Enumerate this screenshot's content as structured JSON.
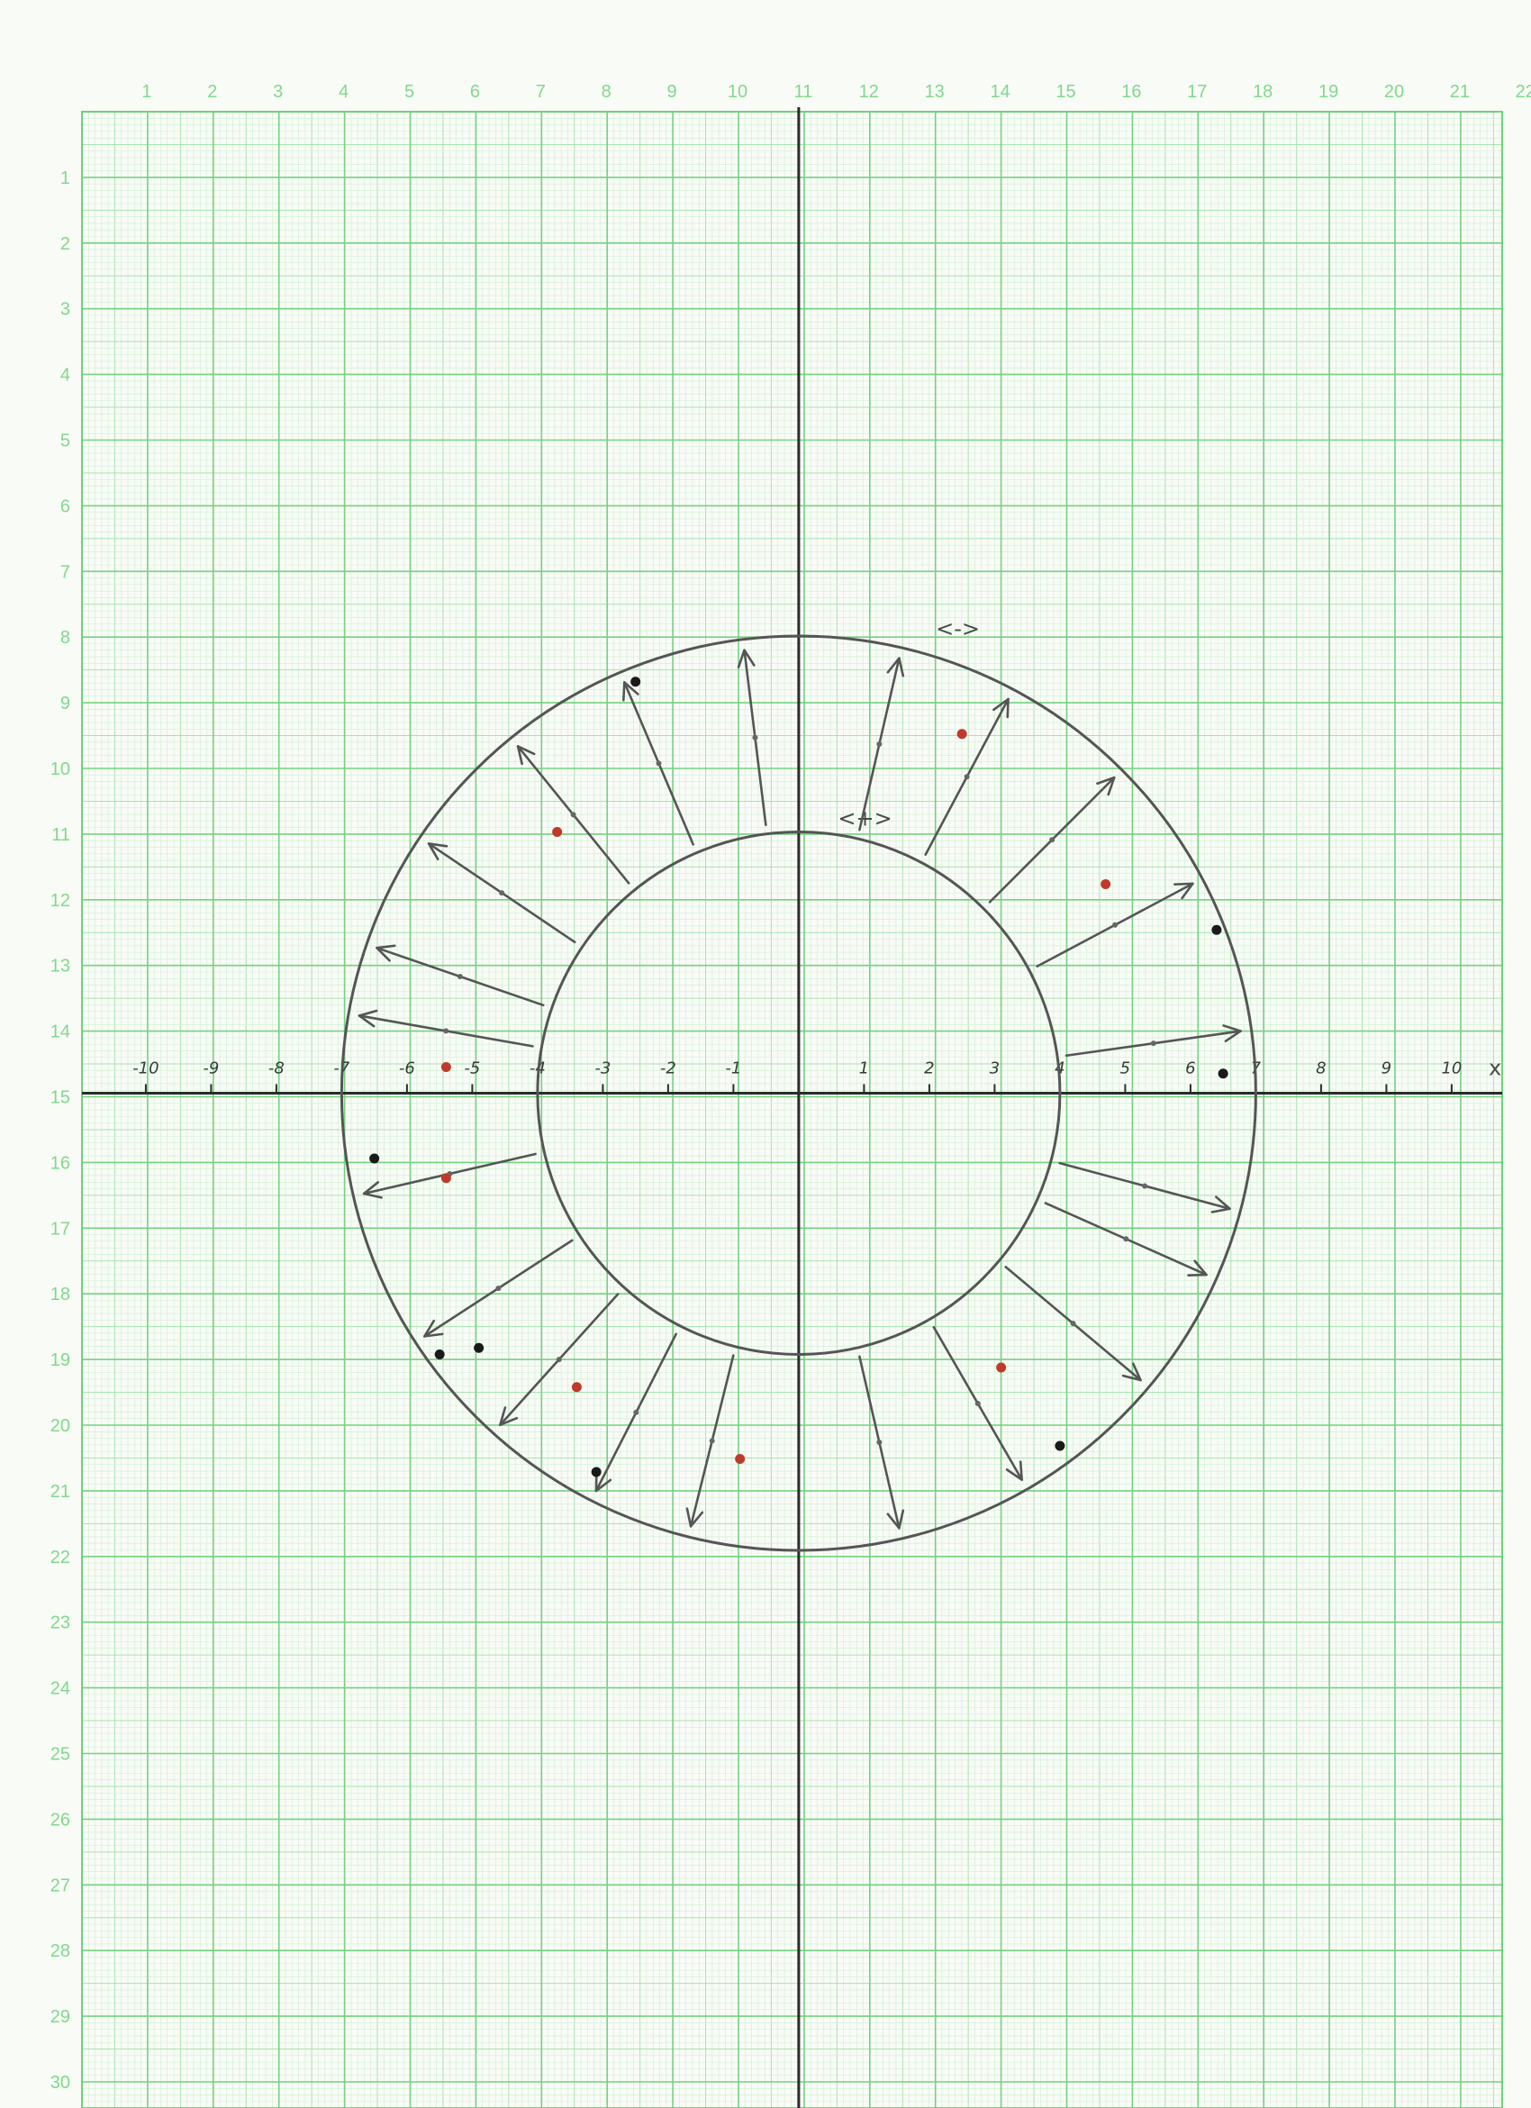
{
  "grid_columns": [
    "1",
    "2",
    "3",
    "4",
    "5",
    "6",
    "7",
    "8",
    "9",
    "10",
    "11",
    "12",
    "13",
    "14",
    "15",
    "16",
    "17",
    "18",
    "19",
    "20",
    "21",
    "22"
  ],
  "grid_rows": [
    "1",
    "2",
    "3",
    "4",
    "5",
    "6",
    "7",
    "8",
    "9",
    "10",
    "11",
    "12",
    "13",
    "14",
    "15",
    "16",
    "17",
    "18",
    "19",
    "20",
    "21",
    "22",
    "23",
    "24",
    "25",
    "26",
    "27",
    "28",
    "29",
    "30"
  ],
  "x_axis": {
    "name": "x",
    "ticks": [
      {
        "v": -10,
        "label": "-10"
      },
      {
        "v": -9,
        "label": "-9"
      },
      {
        "v": -8,
        "label": "-8"
      },
      {
        "v": -7,
        "label": "-7"
      },
      {
        "v": -6,
        "label": "-6"
      },
      {
        "v": -5,
        "label": "-5"
      },
      {
        "v": -4,
        "label": "-4"
      },
      {
        "v": -3,
        "label": "-3"
      },
      {
        "v": -2,
        "label": "-2"
      },
      {
        "v": -1,
        "label": "-1"
      },
      {
        "v": 1,
        "label": "1"
      },
      {
        "v": 2,
        "label": "2"
      },
      {
        "v": 3,
        "label": "3"
      },
      {
        "v": 4,
        "label": "4"
      },
      {
        "v": 5,
        "label": "5"
      },
      {
        "v": 6,
        "label": "6"
      },
      {
        "v": 7,
        "label": "7"
      },
      {
        "v": 8,
        "label": "8"
      },
      {
        "v": 9,
        "label": "9"
      },
      {
        "v": 10,
        "label": "10"
      }
    ]
  },
  "circles": {
    "inner": {
      "radius": 4,
      "label": "<+>"
    },
    "outer": {
      "radius": 7,
      "label": "<->"
    }
  },
  "field_arrows": {
    "angles_deg": [
      8,
      28,
      45,
      62,
      77,
      97,
      113,
      129,
      146,
      161,
      170,
      193,
      213,
      228,
      243,
      256,
      283,
      300,
      320,
      336,
      345
    ]
  },
  "dots": [
    {
      "x": -5.4,
      "y": 0.4,
      "color": "#c0392b"
    },
    {
      "x": 2.5,
      "y": 5.5,
      "color": "#c0392b"
    },
    {
      "x": -3.7,
      "y": 4.0,
      "color": "#c0392b"
    },
    {
      "x": 4.7,
      "y": 3.2,
      "color": "#c0392b"
    },
    {
      "x": -5.4,
      "y": -1.3,
      "color": "#c0392b"
    },
    {
      "x": -3.4,
      "y": -4.5,
      "color": "#c0392b"
    },
    {
      "x": -0.9,
      "y": -5.6,
      "color": "#c0392b"
    },
    {
      "x": 3.1,
      "y": -4.2,
      "color": "#c0392b"
    },
    {
      "x": -2.5,
      "y": 6.3,
      "color": "#1a1a1a"
    },
    {
      "x": 6.4,
      "y": 2.5,
      "color": "#1a1a1a"
    },
    {
      "x": 6.5,
      "y": 0.3,
      "color": "#1a1a1a"
    },
    {
      "x": -6.5,
      "y": -1.0,
      "color": "#1a1a1a"
    },
    {
      "x": -5.5,
      "y": -4.0,
      "color": "#1a1a1a"
    },
    {
      "x": -4.9,
      "y": -3.9,
      "color": "#1a1a1a"
    },
    {
      "x": -3.1,
      "y": -5.8,
      "color": "#1a1a1a"
    },
    {
      "x": 4.0,
      "y": -5.4,
      "color": "#1a1a1a"
    }
  ]
}
